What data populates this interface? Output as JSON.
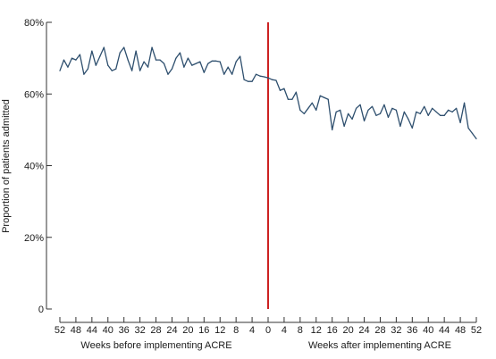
{
  "chart_data": {
    "type": "line",
    "title": "",
    "xlabel": "Weeks before implementing ACRE | Weeks after implementing ACRE",
    "ylabel": "Proportion of patients admitted",
    "ylim": [
      0,
      80
    ],
    "y_ticks": [
      {
        "value": 0,
        "label": "0"
      },
      {
        "value": 20,
        "label": "20%"
      },
      {
        "value": 40,
        "label": "40%"
      },
      {
        "value": 60,
        "label": "60%"
      },
      {
        "value": 80,
        "label": "80%"
      }
    ],
    "x_range": [
      -52,
      52
    ],
    "x_tick_values": [
      -52,
      -48,
      -44,
      -40,
      -36,
      -32,
      -28,
      -24,
      -20,
      -16,
      -12,
      -8,
      -4,
      0,
      4,
      8,
      12,
      16,
      20,
      24,
      28,
      32,
      36,
      40,
      44,
      48,
      52
    ],
    "x_tick_labels": [
      "52",
      "48",
      "44",
      "40",
      "36",
      "32",
      "28",
      "24",
      "20",
      "16",
      "12",
      "8",
      "4",
      "0",
      "4",
      "8",
      "12",
      "16",
      "20",
      "24",
      "28",
      "32",
      "36",
      "40",
      "44",
      "48",
      "52"
    ],
    "segment_labels": {
      "before": "Weeks before implementing ACRE",
      "after": "Weeks after implementing ACRE"
    },
    "intervention_week": 0,
    "grid": false,
    "legend": "none",
    "colors": {
      "series": "#2e4f6e",
      "intervention": "#cc2222",
      "axis": "#333333"
    },
    "series": [
      {
        "x": [
          -52,
          -51,
          -50,
          -49,
          -48,
          -47,
          -46,
          -45,
          -44,
          -43,
          -42,
          -41,
          -40,
          -39,
          -38,
          -37,
          -36,
          -35,
          -34,
          -33,
          -32,
          -31,
          -30,
          -29,
          -28,
          -27,
          -26,
          -25,
          -24,
          -23,
          -22,
          -21,
          -20,
          -19,
          -18,
          -17,
          -16,
          -15,
          -14,
          -13,
          -12,
          -11,
          -10,
          -9,
          -8,
          -7,
          -6,
          -5,
          -4,
          -3,
          -2,
          -1,
          0,
          1,
          2,
          3,
          4,
          5,
          6,
          7,
          8,
          9,
          10,
          11,
          12,
          13,
          14,
          15,
          16,
          17,
          18,
          19,
          20,
          21,
          22,
          23,
          24,
          25,
          26,
          27,
          28,
          29,
          30,
          31,
          32,
          33,
          34,
          35,
          36,
          37,
          38,
          39,
          40,
          41,
          42,
          43,
          44,
          45,
          46,
          47,
          48,
          49,
          50,
          51,
          52
        ],
        "values": [
          66.5,
          69.5,
          67.5,
          70,
          69.5,
          71,
          65.5,
          67,
          72,
          68,
          70.5,
          73,
          68,
          66.5,
          67,
          71.5,
          73,
          69.5,
          66.5,
          72,
          66.5,
          69,
          67.5,
          73,
          69.5,
          69.5,
          68.5,
          65.5,
          67,
          70,
          71.5,
          67.5,
          70,
          68,
          68.5,
          69,
          66,
          68.5,
          69.2,
          69.2,
          69,
          65.5,
          67.5,
          65.5,
          69,
          70.5,
          64,
          63.5,
          63.5,
          65.5,
          65,
          64.8,
          64.5,
          64,
          63.8,
          61,
          61.5,
          58.5,
          58.5,
          60.5,
          55.5,
          54.5,
          56,
          57.5,
          55.5,
          59.5,
          59,
          58.5,
          50,
          55,
          55.5,
          51,
          54.5,
          53,
          56,
          57,
          52.5,
          55.5,
          56.5,
          54,
          54.5,
          57,
          53.5,
          56,
          55.5,
          51,
          55,
          53,
          50.5,
          55,
          54.5,
          56.5,
          54,
          56,
          55,
          54,
          54,
          55.5,
          55,
          56,
          52,
          57.5,
          50.5,
          49,
          47.5
        ]
      }
    ]
  }
}
